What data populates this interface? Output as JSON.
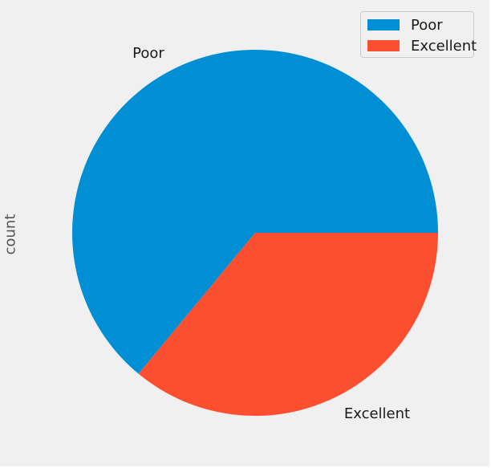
{
  "chart_data": {
    "type": "pie",
    "categories": [
      "Poor",
      "Excellent"
    ],
    "values": [
      64,
      36
    ],
    "colors": [
      "#008fd5",
      "#fc4f30"
    ],
    "ylabel": "count",
    "legend": {
      "position": "top-right",
      "entries": [
        "Poor",
        "Excellent"
      ]
    },
    "slice_labels": [
      "Poor",
      "Excellent"
    ]
  }
}
